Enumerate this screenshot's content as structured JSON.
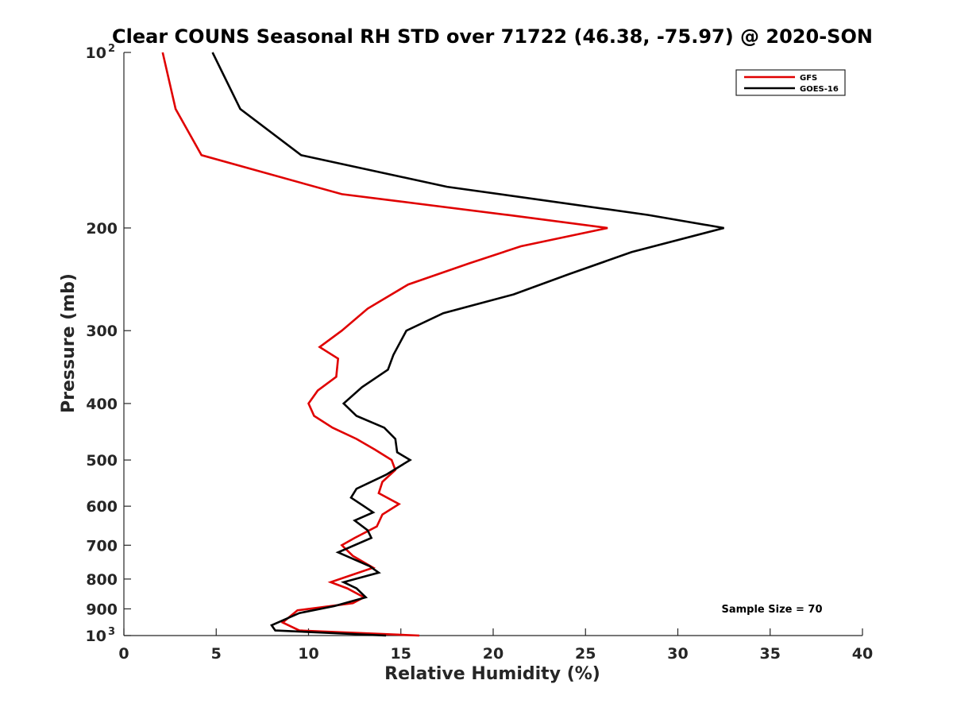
{
  "chart_data": {
    "type": "line",
    "title": "Clear COUNS Seasonal RH STD over 71722 (46.38, -75.97) @ 2020-SON",
    "xlabel": "Relative Humidity (%)",
    "ylabel": "Pressure (mb)",
    "xlim": [
      0,
      40
    ],
    "ylim": [
      100,
      1000
    ],
    "yscale": "log",
    "y_reversed": true,
    "x_ticks": [
      0,
      5,
      10,
      15,
      20,
      25,
      30,
      35,
      40
    ],
    "y_ticks": [
      {
        "value": 100,
        "label": "10",
        "exponent": "2"
      },
      {
        "value": 200,
        "label": "200",
        "exponent": ""
      },
      {
        "value": 300,
        "label": "300",
        "exponent": ""
      },
      {
        "value": 400,
        "label": "400",
        "exponent": ""
      },
      {
        "value": 500,
        "label": "500",
        "exponent": ""
      },
      {
        "value": 600,
        "label": "600",
        "exponent": ""
      },
      {
        "value": 700,
        "label": "700",
        "exponent": ""
      },
      {
        "value": 800,
        "label": "800",
        "exponent": ""
      },
      {
        "value": 900,
        "label": "900",
        "exponent": ""
      },
      {
        "value": 1000,
        "label": "10",
        "exponent": "3"
      }
    ],
    "legend_position": "top-right",
    "annotation": "Sample Size = 70",
    "series": [
      {
        "name": "GFS",
        "color": "#e00000",
        "points": [
          [
            2.1,
            100
          ],
          [
            2.8,
            125
          ],
          [
            4.2,
            150
          ],
          [
            11.8,
            175
          ],
          [
            20.8,
            190
          ],
          [
            26.2,
            200
          ],
          [
            21.5,
            215
          ],
          [
            18.7,
            230
          ],
          [
            15.4,
            250
          ],
          [
            13.2,
            275
          ],
          [
            11.8,
            300
          ],
          [
            10.6,
            320
          ],
          [
            11.6,
            335
          ],
          [
            11.5,
            360
          ],
          [
            10.5,
            380
          ],
          [
            10.0,
            400
          ],
          [
            10.3,
            420
          ],
          [
            11.3,
            440
          ],
          [
            12.6,
            460
          ],
          [
            13.6,
            480
          ],
          [
            14.5,
            500
          ],
          [
            14.7,
            520
          ],
          [
            14.0,
            545
          ],
          [
            13.8,
            570
          ],
          [
            14.9,
            595
          ],
          [
            14.0,
            620
          ],
          [
            13.7,
            650
          ],
          [
            12.5,
            680
          ],
          [
            11.8,
            700
          ],
          [
            12.4,
            730
          ],
          [
            13.5,
            765
          ],
          [
            12.2,
            790
          ],
          [
            11.2,
            810
          ],
          [
            12.1,
            830
          ],
          [
            13.0,
            860
          ],
          [
            12.4,
            880
          ],
          [
            9.4,
            905
          ],
          [
            8.6,
            950
          ],
          [
            9.5,
            980
          ],
          [
            16.0,
            1000
          ]
        ]
      },
      {
        "name": "GOES-16",
        "color": "#000000",
        "points": [
          [
            4.8,
            100
          ],
          [
            6.3,
            125
          ],
          [
            9.6,
            150
          ],
          [
            17.5,
            170
          ],
          [
            28.4,
            190
          ],
          [
            32.5,
            200
          ],
          [
            27.5,
            220
          ],
          [
            24.1,
            240
          ],
          [
            21.1,
            260
          ],
          [
            17.3,
            280
          ],
          [
            15.3,
            300
          ],
          [
            14.6,
            330
          ],
          [
            14.3,
            350
          ],
          [
            12.9,
            375
          ],
          [
            11.9,
            400
          ],
          [
            12.6,
            420
          ],
          [
            14.1,
            440
          ],
          [
            14.7,
            460
          ],
          [
            14.8,
            485
          ],
          [
            15.5,
            500
          ],
          [
            14.2,
            530
          ],
          [
            12.6,
            560
          ],
          [
            12.3,
            580
          ],
          [
            13.0,
            600
          ],
          [
            13.5,
            615
          ],
          [
            12.5,
            635
          ],
          [
            13.2,
            660
          ],
          [
            13.4,
            680
          ],
          [
            11.6,
            720
          ],
          [
            13.3,
            760
          ],
          [
            13.8,
            780
          ],
          [
            11.9,
            810
          ],
          [
            12.6,
            830
          ],
          [
            13.1,
            860
          ],
          [
            11.4,
            890
          ],
          [
            9.5,
            915
          ],
          [
            8.0,
            960
          ],
          [
            8.2,
            980
          ],
          [
            14.2,
            1000
          ]
        ]
      }
    ]
  }
}
